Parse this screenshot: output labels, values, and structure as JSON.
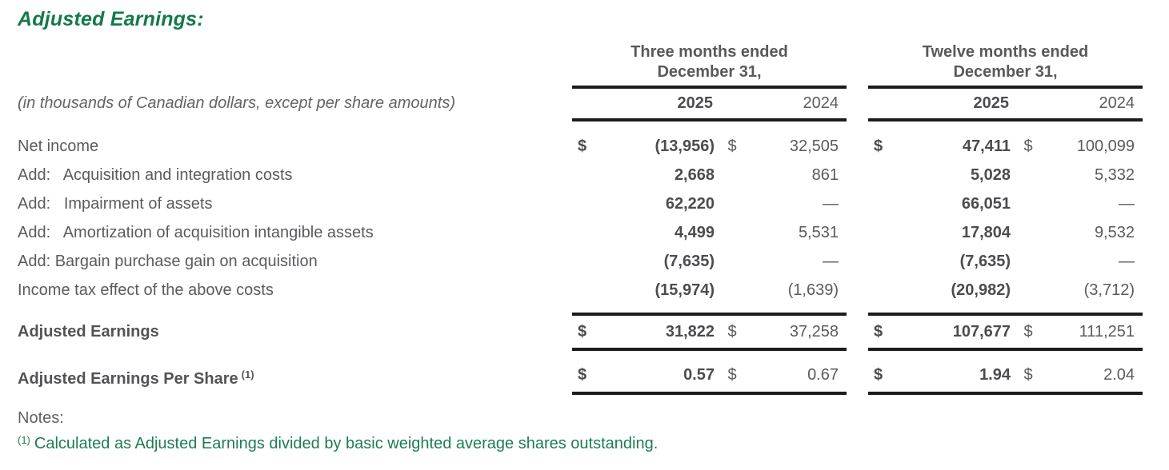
{
  "title": "Adjusted Earnings:",
  "subtitle": "(in thousands of Canadian dollars, except per share amounts)",
  "colors": {
    "accent_green": "#15794a",
    "footnote_green": "#1e7c52",
    "text_gray": "#5a5b5e",
    "text_bold_gray": "#4b4c4f",
    "rule_black": "#1c1c1e"
  },
  "header": {
    "group1": {
      "line1": "Three months ended",
      "line2": "December 31,",
      "year_current": "2025",
      "year_prior": "2024"
    },
    "group2": {
      "line1": "Twelve months ended",
      "line2": "December 31,",
      "year_current": "2025",
      "year_prior": "2024"
    }
  },
  "rows": [
    {
      "kind": "data",
      "label": "Net income",
      "g1": {
        "d1": "$",
        "v1": "(13,956)",
        "d2": "$",
        "v2": "32,505"
      },
      "g2": {
        "d1": "$",
        "v1": "47,411",
        "d2": "$",
        "v2": "100,099"
      }
    },
    {
      "kind": "data",
      "label": "Add:   Acquisition and integration costs",
      "g1": {
        "d1": "",
        "v1": "2,668",
        "d2": "",
        "v2": "861"
      },
      "g2": {
        "d1": "",
        "v1": "5,028",
        "d2": "",
        "v2": "5,332"
      }
    },
    {
      "kind": "data",
      "label": "Add:   Impairment of assets",
      "g1": {
        "d1": "",
        "v1": "62,220",
        "d2": "",
        "v2": "—"
      },
      "g2": {
        "d1": "",
        "v1": "66,051",
        "d2": "",
        "v2": "—"
      }
    },
    {
      "kind": "data",
      "label": "Add:   Amortization of acquisition intangible assets",
      "g1": {
        "d1": "",
        "v1": "4,499",
        "d2": "",
        "v2": "5,531"
      },
      "g2": {
        "d1": "",
        "v1": "17,804",
        "d2": "",
        "v2": "9,532"
      }
    },
    {
      "kind": "data",
      "label": "Add: Bargain purchase gain on acquisition",
      "g1": {
        "d1": "",
        "v1": "(7,635)",
        "d2": "",
        "v2": "—"
      },
      "g2": {
        "d1": "",
        "v1": "(7,635)",
        "d2": "",
        "v2": "—"
      }
    },
    {
      "kind": "data",
      "label": "Income tax effect of the above costs",
      "g1": {
        "d1": "",
        "v1": "(15,974)",
        "d2": "",
        "v2": "(1,639)"
      },
      "g2": {
        "d1": "",
        "v1": "(20,982)",
        "d2": "",
        "v2": "(3,712)"
      }
    },
    {
      "kind": "total",
      "label": "Adjusted Earnings",
      "g1": {
        "d1": "$",
        "v1": "31,822",
        "d2": "$",
        "v2": "37,258"
      },
      "g2": {
        "d1": "$",
        "v1": "107,677",
        "d2": "$",
        "v2": "111,251"
      }
    },
    {
      "kind": "pershare",
      "label": "Adjusted Earnings Per Share",
      "sup": "(1)",
      "g1": {
        "d1": "$",
        "v1": "0.57",
        "d2": "$",
        "v2": "0.67"
      },
      "g2": {
        "d1": "$",
        "v1": "1.94",
        "d2": "$",
        "v2": "2.04"
      }
    }
  ],
  "notes": {
    "heading": "Notes:",
    "marker": "(1)",
    "text": "Calculated as Adjusted Earnings divided by basic weighted average shares outstanding."
  }
}
